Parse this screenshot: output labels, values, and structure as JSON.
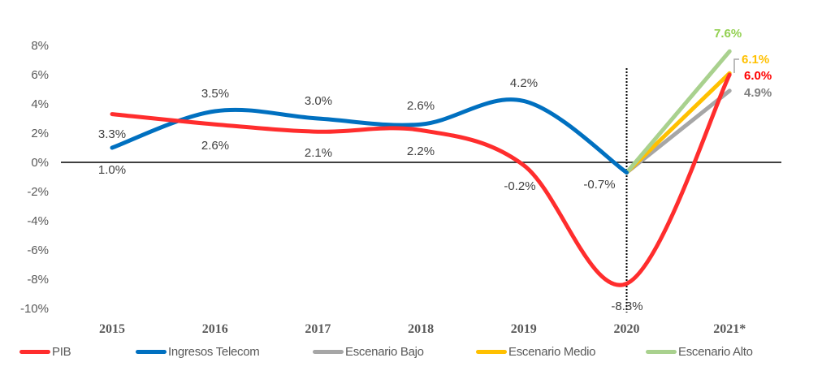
{
  "chart_data": {
    "type": "line",
    "title": "",
    "xlabel": "",
    "ylabel": "",
    "categories": [
      "2015",
      "2016",
      "2017",
      "2018",
      "2019",
      "2020",
      "2021*"
    ],
    "ylim": [
      -10,
      8
    ],
    "yticks": [
      8,
      6,
      4,
      2,
      0,
      -2,
      -4,
      -6,
      -8,
      -10
    ],
    "ytick_labels": [
      "8%",
      "6%",
      "4%",
      "2%",
      "0%",
      "-2%",
      "-4%",
      "-6%",
      "-8%",
      "-10%"
    ],
    "grid": false,
    "legend_position": "bottom",
    "vertical_marker": {
      "at": "2020",
      "style": "dotted"
    },
    "series": [
      {
        "name": "PIB",
        "color": "#FF2D2D",
        "smooth": true,
        "values": [
          3.3,
          2.6,
          2.1,
          2.2,
          -0.2,
          -8.3,
          6.0
        ],
        "labels": [
          "3.3%",
          "2.6%",
          "2.1%",
          "2.2%",
          "-0.2%",
          "-8.3%",
          "6.0%"
        ]
      },
      {
        "name": "Ingresos Telecom",
        "color": "#0070C0",
        "smooth": true,
        "values": [
          1.0,
          3.5,
          3.0,
          2.6,
          4.2,
          -0.7,
          null
        ],
        "labels": [
          "1.0%",
          "3.5%",
          "3.0%",
          "2.6%",
          "4.2%",
          "-0.7%",
          null
        ]
      },
      {
        "name": "Escenario Bajo",
        "color": "#A6A6A6",
        "smooth": false,
        "values": [
          null,
          null,
          null,
          null,
          null,
          -0.7,
          4.9
        ],
        "labels": [
          null,
          null,
          null,
          null,
          null,
          null,
          "4.9%"
        ]
      },
      {
        "name": "Escenario Medio",
        "color": "#FFC000",
        "smooth": false,
        "values": [
          null,
          null,
          null,
          null,
          null,
          -0.7,
          6.1
        ],
        "labels": [
          null,
          null,
          null,
          null,
          null,
          null,
          "6.1%"
        ]
      },
      {
        "name": "Escenario Alto",
        "color": "#A9D18E",
        "smooth": false,
        "values": [
          null,
          null,
          null,
          null,
          null,
          -0.7,
          7.6
        ],
        "labels": [
          null,
          null,
          null,
          null,
          null,
          null,
          "7.6%"
        ]
      }
    ],
    "end_label_colors": {
      "Escenario Alto": "#92D050",
      "Escenario Medio": "#FFC000",
      "PIB": "#FF0000",
      "Escenario Bajo": "#808080"
    }
  },
  "legend": [
    {
      "label": "PIB",
      "color": "#FF2D2D"
    },
    {
      "label": "Ingresos Telecom",
      "color": "#0070C0"
    },
    {
      "label": "Escenario Bajo",
      "color": "#A6A6A6"
    },
    {
      "label": "Escenario Medio",
      "color": "#FFC000"
    },
    {
      "label": "Escenario Alto",
      "color": "#A9D18E"
    }
  ]
}
